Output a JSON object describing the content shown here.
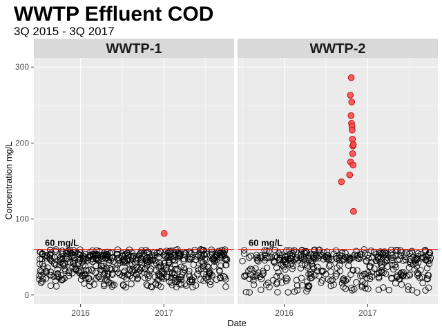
{
  "chart_data": {
    "type": "scatter",
    "title": "WWTP Effluent COD",
    "subtitle": "3Q 2015 - 3Q 2017",
    "xlabel": "Date",
    "ylabel": "Concentration mg/L",
    "xlim": [
      "2015-06-10",
      "2017-11-05"
    ],
    "ylim": [
      -12,
      312
    ],
    "x_ticks": [
      {
        "date": "2016-01-01",
        "label": "2016"
      },
      {
        "date": "2017-01-01",
        "label": "2017"
      }
    ],
    "y_ticks": [
      0,
      100,
      200,
      300
    ],
    "grid": true,
    "reference_line": {
      "y": 60,
      "label": "60 mg/L",
      "color": "#ff0000"
    },
    "colors": {
      "panel_bg": "#ebebeb",
      "strip_bg": "#d9d9d9",
      "grid": "#ffffff",
      "exceed_fill": "#ff4d4d",
      "normal_fill": "none",
      "point_stroke": "#000000"
    },
    "facets": [
      {
        "name": "WWTP-1",
        "start": "2015-07-01",
        "end": "2017-10-05",
        "n_points": 560,
        "typical_range": [
          10,
          60
        ],
        "exceedances": [
          {
            "x": "2017-01-02",
            "y": 81
          }
        ]
      },
      {
        "name": "WWTP-2",
        "start": "2015-07-01",
        "end": "2017-10-05",
        "n_points": 420,
        "typical_range": [
          3,
          60
        ],
        "exceedances": [
          {
            "x": "2016-09-08",
            "y": 149
          },
          {
            "x": "2016-10-14",
            "y": 158
          },
          {
            "x": "2016-10-17",
            "y": 263
          },
          {
            "x": "2016-10-18",
            "y": 175
          },
          {
            "x": "2016-10-20",
            "y": 236
          },
          {
            "x": "2016-10-22",
            "y": 226
          },
          {
            "x": "2016-10-23",
            "y": 254
          },
          {
            "x": "2016-10-24",
            "y": 222
          },
          {
            "x": "2016-10-25",
            "y": 217
          },
          {
            "x": "2016-10-26",
            "y": 205
          },
          {
            "x": "2016-10-27",
            "y": 186
          },
          {
            "x": "2016-10-28",
            "y": 196
          },
          {
            "x": "2016-10-29",
            "y": 171
          },
          {
            "x": "2016-10-30",
            "y": 198
          },
          {
            "x": "2016-10-31",
            "y": 110
          },
          {
            "x": "2016-10-21",
            "y": 286
          }
        ]
      }
    ]
  }
}
